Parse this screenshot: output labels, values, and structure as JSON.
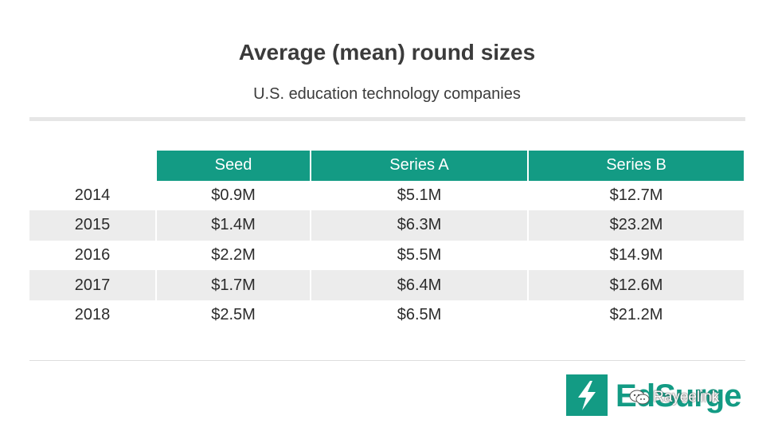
{
  "chart_data": {
    "type": "table",
    "title": "Average (mean) round sizes",
    "subtitle": "U.S. education technology companies",
    "columns": [
      "Seed",
      "Series A",
      "Series B"
    ],
    "rows": [
      {
        "year": "2014",
        "values": [
          "$0.9M",
          "$5.1M",
          "$12.7M"
        ]
      },
      {
        "year": "2015",
        "values": [
          "$1.4M",
          "$6.3M",
          "$23.2M"
        ]
      },
      {
        "year": "2016",
        "values": [
          "$2.2M",
          "$5.5M",
          "$14.9M"
        ]
      },
      {
        "year": "2017",
        "values": [
          "$1.7M",
          "$6.4M",
          "$12.6M"
        ]
      },
      {
        "year": "2018",
        "values": [
          "$2.5M",
          "$6.5M",
          "$21.2M"
        ]
      }
    ]
  },
  "colors": {
    "header_bg": "#139b84",
    "stripe": "#ececec",
    "text": "#2b2b2b"
  },
  "logo": {
    "text": "EdSurge",
    "icon": "lightning-bolt-icon"
  },
  "watermark": {
    "text": "Rayeelink",
    "icon": "wechat-icon"
  }
}
